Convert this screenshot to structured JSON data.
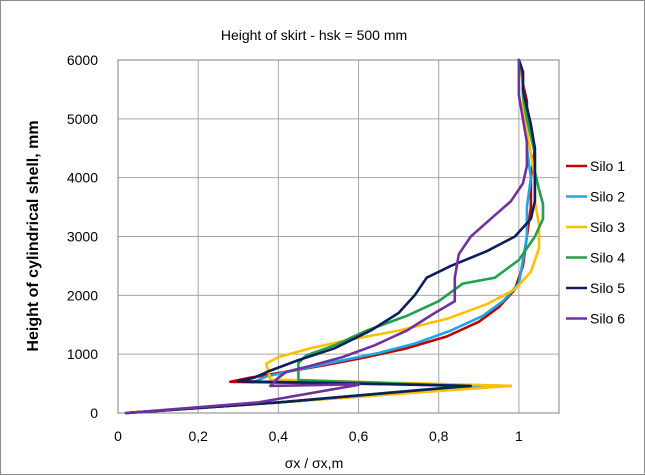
{
  "chart_data": {
    "type": "line",
    "title": "Height of skirt - hsk = 500 mm",
    "xlabel": "σx / σx,m",
    "ylabel": "Height of cylindrical shell, mm",
    "xlim": [
      0,
      1.1
    ],
    "ylim": [
      0,
      6000
    ],
    "xticks": [
      0,
      0.2,
      0.4,
      0.6,
      0.8,
      1
    ],
    "xtick_labels": [
      "0",
      "0,2",
      "0,4",
      "0,6",
      "0,8",
      "1"
    ],
    "yticks": [
      0,
      1000,
      2000,
      3000,
      4000,
      5000,
      6000
    ],
    "ytick_labels": [
      "0",
      "1000",
      "2000",
      "3000",
      "4000",
      "5000",
      "6000"
    ],
    "grid": true,
    "legend_position": "right",
    "series": [
      {
        "name": "Silo 1",
        "color": "#c00000",
        "x": [
          0.02,
          0.4,
          0.94,
          0.98,
          0.28,
          0.33,
          0.42,
          0.52,
          0.62,
          0.72,
          0.82,
          0.9,
          0.95,
          0.99,
          1.01,
          1.02,
          1.03,
          1.03,
          1.04,
          1.03,
          1.02,
          1.02,
          1.01,
          1.01,
          1.0
        ],
        "y": [
          0,
          180,
          450,
          460,
          530,
          600,
          700,
          820,
          950,
          1100,
          1300,
          1550,
          1800,
          2100,
          2500,
          3000,
          3500,
          4000,
          4500,
          4800,
          5000,
          5300,
          5600,
          5800,
          6000
        ]
      },
      {
        "name": "Silo 2",
        "color": "#1ea7e6",
        "x": [
          0.02,
          0.4,
          0.94,
          0.97,
          0.34,
          0.37,
          0.45,
          0.55,
          0.65,
          0.74,
          0.83,
          0.91,
          0.96,
          1.0,
          1.01,
          1.02,
          1.02,
          1.03,
          1.02,
          1.02,
          1.01,
          1.01,
          1.0
        ],
        "y": [
          0,
          180,
          450,
          460,
          530,
          620,
          740,
          880,
          1020,
          1180,
          1400,
          1650,
          1900,
          2200,
          2600,
          3000,
          3500,
          4000,
          4500,
          5000,
          5400,
          5700,
          6000
        ]
      },
      {
        "name": "Silo 3",
        "color": "#ffc000",
        "x": [
          0.02,
          0.4,
          0.96,
          0.98,
          0.38,
          0.37,
          0.4,
          0.48,
          0.58,
          0.7,
          0.82,
          0.92,
          0.99,
          1.03,
          1.05,
          1.05,
          1.04,
          1.04,
          1.03,
          1.02,
          1.01,
          1.01,
          1.0
        ],
        "y": [
          0,
          180,
          450,
          460,
          570,
          840,
          950,
          1100,
          1250,
          1400,
          1600,
          1850,
          2100,
          2400,
          2800,
          3200,
          3600,
          4000,
          4400,
          4800,
          5200,
          5600,
          6000
        ]
      },
      {
        "name": "Silo 4",
        "color": "#21a150",
        "x": [
          0.02,
          0.4,
          0.85,
          0.87,
          0.45,
          0.45,
          0.47,
          0.54,
          0.62,
          0.72,
          0.8,
          0.86,
          0.94,
          1.0,
          1.04,
          1.06,
          1.06,
          1.05,
          1.04,
          1.04,
          1.03,
          1.02,
          1.01,
          1.01,
          1.0
        ],
        "y": [
          0,
          180,
          450,
          460,
          560,
          850,
          980,
          1150,
          1400,
          1650,
          1900,
          2200,
          2300,
          2600,
          3000,
          3300,
          3550,
          3800,
          4100,
          4400,
          4700,
          5000,
          5400,
          5700,
          6000
        ]
      },
      {
        "name": "Silo 5",
        "color": "#0d1f5a",
        "x": [
          0.02,
          0.4,
          0.86,
          0.88,
          0.3,
          0.34,
          0.38,
          0.45,
          0.54,
          0.63,
          0.7,
          0.74,
          0.77,
          0.83,
          0.92,
          0.99,
          1.03,
          1.04,
          1.04,
          1.04,
          1.03,
          1.02,
          1.01,
          1.01,
          1.0
        ],
        "y": [
          0,
          180,
          450,
          460,
          540,
          600,
          720,
          900,
          1100,
          1400,
          1700,
          2000,
          2300,
          2500,
          2750,
          3000,
          3300,
          3600,
          4000,
          4500,
          4900,
          5200,
          5500,
          5800,
          6000
        ]
      },
      {
        "name": "Silo 6",
        "color": "#7030a0",
        "x": [
          0.02,
          0.35,
          0.6,
          0.6,
          0.38,
          0.4,
          0.42,
          0.48,
          0.56,
          0.64,
          0.72,
          0.79,
          0.84,
          0.84,
          0.85,
          0.88,
          0.93,
          0.98,
          1.01,
          1.02,
          1.02,
          1.01,
          1.0,
          1.0,
          1.0
        ],
        "y": [
          0,
          180,
          480,
          490,
          460,
          600,
          700,
          800,
          950,
          1150,
          1400,
          1700,
          1900,
          2300,
          2700,
          3000,
          3300,
          3600,
          3900,
          4200,
          4600,
          5000,
          5400,
          5700,
          6000
        ]
      }
    ]
  }
}
